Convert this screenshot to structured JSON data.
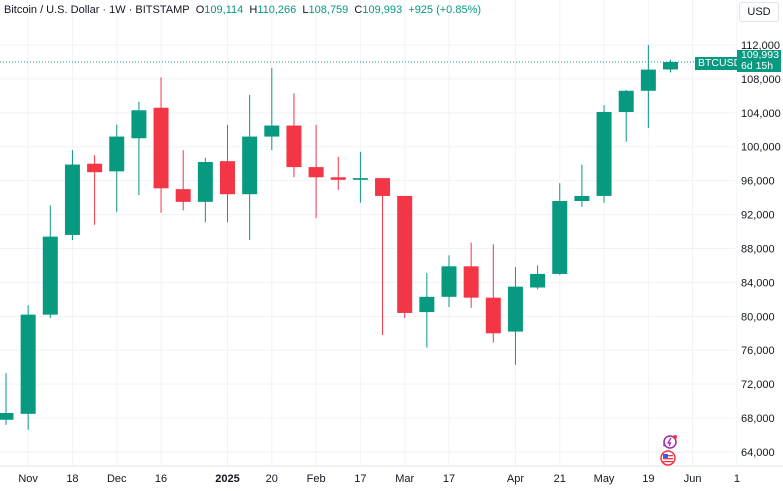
{
  "header": {
    "title": "Bitcoin / U.S. Dollar · 1W · BITSTAMP",
    "open_label": "O",
    "open": "109,114",
    "high_label": "H",
    "high": "110,266",
    "low_label": "L",
    "low": "108,759",
    "close_label": "C",
    "close": "109,993",
    "change": "+925 (+0.85%)"
  },
  "currency_button": "USD",
  "price_tag": {
    "symbol": "BTCUSD",
    "price": "109,993",
    "countdown": "6d 15h"
  },
  "colors": {
    "up": "#089981",
    "down": "#f23645",
    "grid": "#f0f3fa"
  },
  "icons": [
    "economic-event-icon",
    "us-flag-icon"
  ],
  "chart_data": {
    "type": "candlestick",
    "title": "Bitcoin / U.S. Dollar · 1W · BITSTAMP",
    "ylim": [
      62000,
      114000
    ],
    "y_ticks": [
      112000,
      108000,
      104000,
      100000,
      96000,
      92000,
      88000,
      84000,
      80000,
      76000,
      72000,
      68000,
      64000
    ],
    "y_tick_labels": [
      "112,000",
      "108,000",
      "104,000",
      "100,000",
      "96,000",
      "92,000",
      "88,000",
      "84,000",
      "80,000",
      "76,000",
      "72,000",
      "68,000",
      "64,000"
    ],
    "x_tick_labels": [
      {
        "label": "Nov",
        "at": 1
      },
      {
        "label": "18",
        "at": 3
      },
      {
        "label": "Dec",
        "at": 5
      },
      {
        "label": "16",
        "at": 7
      },
      {
        "label": "2025",
        "at": 10,
        "bold": true
      },
      {
        "label": "20",
        "at": 12
      },
      {
        "label": "Feb",
        "at": 14
      },
      {
        "label": "17",
        "at": 16
      },
      {
        "label": "Mar",
        "at": 18
      },
      {
        "label": "17",
        "at": 20
      },
      {
        "label": "Apr",
        "at": 23
      },
      {
        "label": "21",
        "at": 25
      },
      {
        "label": "May",
        "at": 27
      },
      {
        "label": "19",
        "at": 29
      },
      {
        "label": "Jun",
        "at": 31
      },
      {
        "label": "1",
        "at": 33
      }
    ],
    "ohlc": [
      [
        67800,
        73300,
        67200,
        68600
      ],
      [
        68500,
        81300,
        66600,
        80200
      ],
      [
        80200,
        93100,
        79800,
        89400
      ],
      [
        89600,
        99600,
        89000,
        97900
      ],
      [
        98000,
        99000,
        90800,
        97000
      ],
      [
        97100,
        102600,
        92300,
        101200
      ],
      [
        101000,
        105300,
        94300,
        104300
      ],
      [
        104600,
        108200,
        92200,
        95100
      ],
      [
        95000,
        99600,
        92500,
        93500
      ],
      [
        93500,
        98700,
        91100,
        98200
      ],
      [
        98300,
        102600,
        91100,
        94400
      ],
      [
        94400,
        106100,
        89000,
        101200
      ],
      [
        101200,
        109300,
        99600,
        102500
      ],
      [
        102500,
        106300,
        96400,
        97600
      ],
      [
        97600,
        102600,
        91600,
        96400
      ],
      [
        96400,
        98800,
        94900,
        96100
      ],
      [
        96100,
        99400,
        93400,
        96300
      ],
      [
        96300,
        96300,
        77800,
        94200
      ],
      [
        94200,
        94200,
        79800,
        80400
      ],
      [
        80500,
        85100,
        76300,
        82300
      ],
      [
        82300,
        87200,
        81100,
        85900
      ],
      [
        85900,
        88700,
        81000,
        82200
      ],
      [
        82200,
        88500,
        76900,
        78000
      ],
      [
        78200,
        85800,
        74300,
        83500
      ],
      [
        83400,
        86000,
        83200,
        85000
      ],
      [
        85000,
        95700,
        84900,
        93600
      ],
      [
        93600,
        97900,
        92900,
        94200
      ],
      [
        94200,
        104900,
        93400,
        104100
      ],
      [
        104100,
        106700,
        100600,
        106600
      ],
      [
        106600,
        112000,
        102200,
        109100
      ],
      [
        109114,
        110266,
        108759,
        109993
      ]
    ],
    "last_price": 109993
  }
}
